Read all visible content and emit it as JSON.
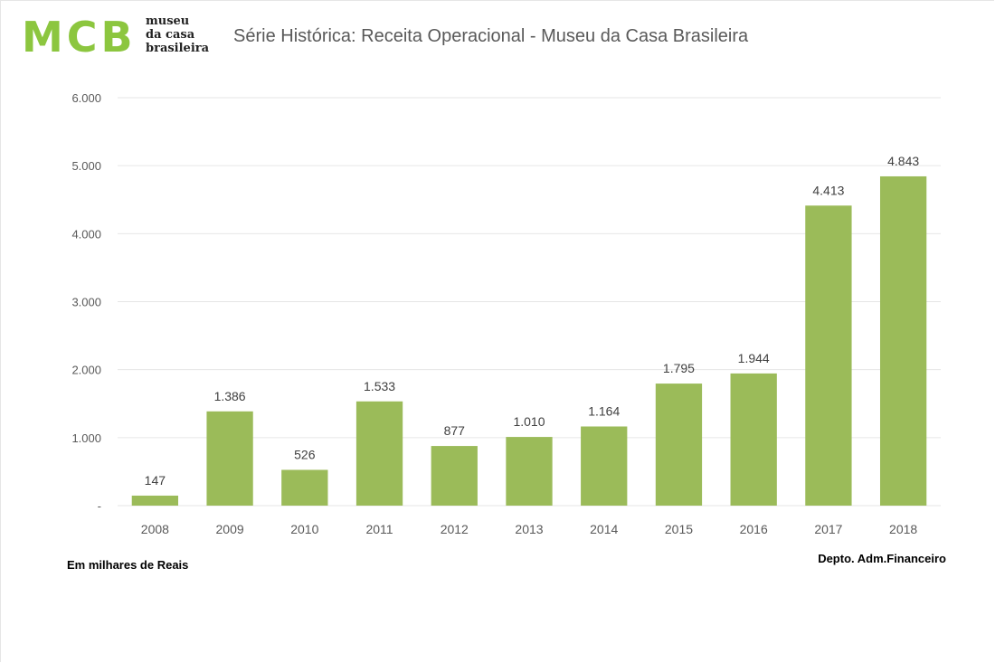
{
  "header": {
    "logo_letters": "MCB",
    "logo_words": [
      "museu",
      "da casa",
      "brasileira"
    ],
    "title": "Série Histórica: Receita Operacional - Museu da Casa Brasileira"
  },
  "footer": {
    "unit_note": "Em milhares de Reais",
    "source_note": "Depto. Adm.Financeiro"
  },
  "colors": {
    "bar": "#9bbb59",
    "logo": "#8cc63f"
  },
  "chart_data": {
    "type": "bar",
    "title": "Série Histórica: Receita Operacional - Museu da Casa Brasileira",
    "categories": [
      "2008",
      "2009",
      "2010",
      "2011",
      "2012",
      "2013",
      "2014",
      "2015",
      "2016",
      "2017",
      "2018"
    ],
    "values": [
      147,
      1386,
      526,
      1533,
      877,
      1010,
      1164,
      1795,
      1944,
      4413,
      4843
    ],
    "value_labels": [
      "147",
      "1.386",
      "526",
      "1.533",
      "877",
      "1.010",
      "1.164",
      "1.795",
      "1.944",
      "4.413",
      "4.843"
    ],
    "yticks": [
      0,
      1000,
      2000,
      3000,
      4000,
      5000,
      6000
    ],
    "ytick_labels": [
      "-",
      "1.000",
      "2.000",
      "3.000",
      "4.000",
      "5.000",
      "6.000"
    ],
    "ylim": [
      0,
      6000
    ],
    "grid": true,
    "legend": "none"
  }
}
